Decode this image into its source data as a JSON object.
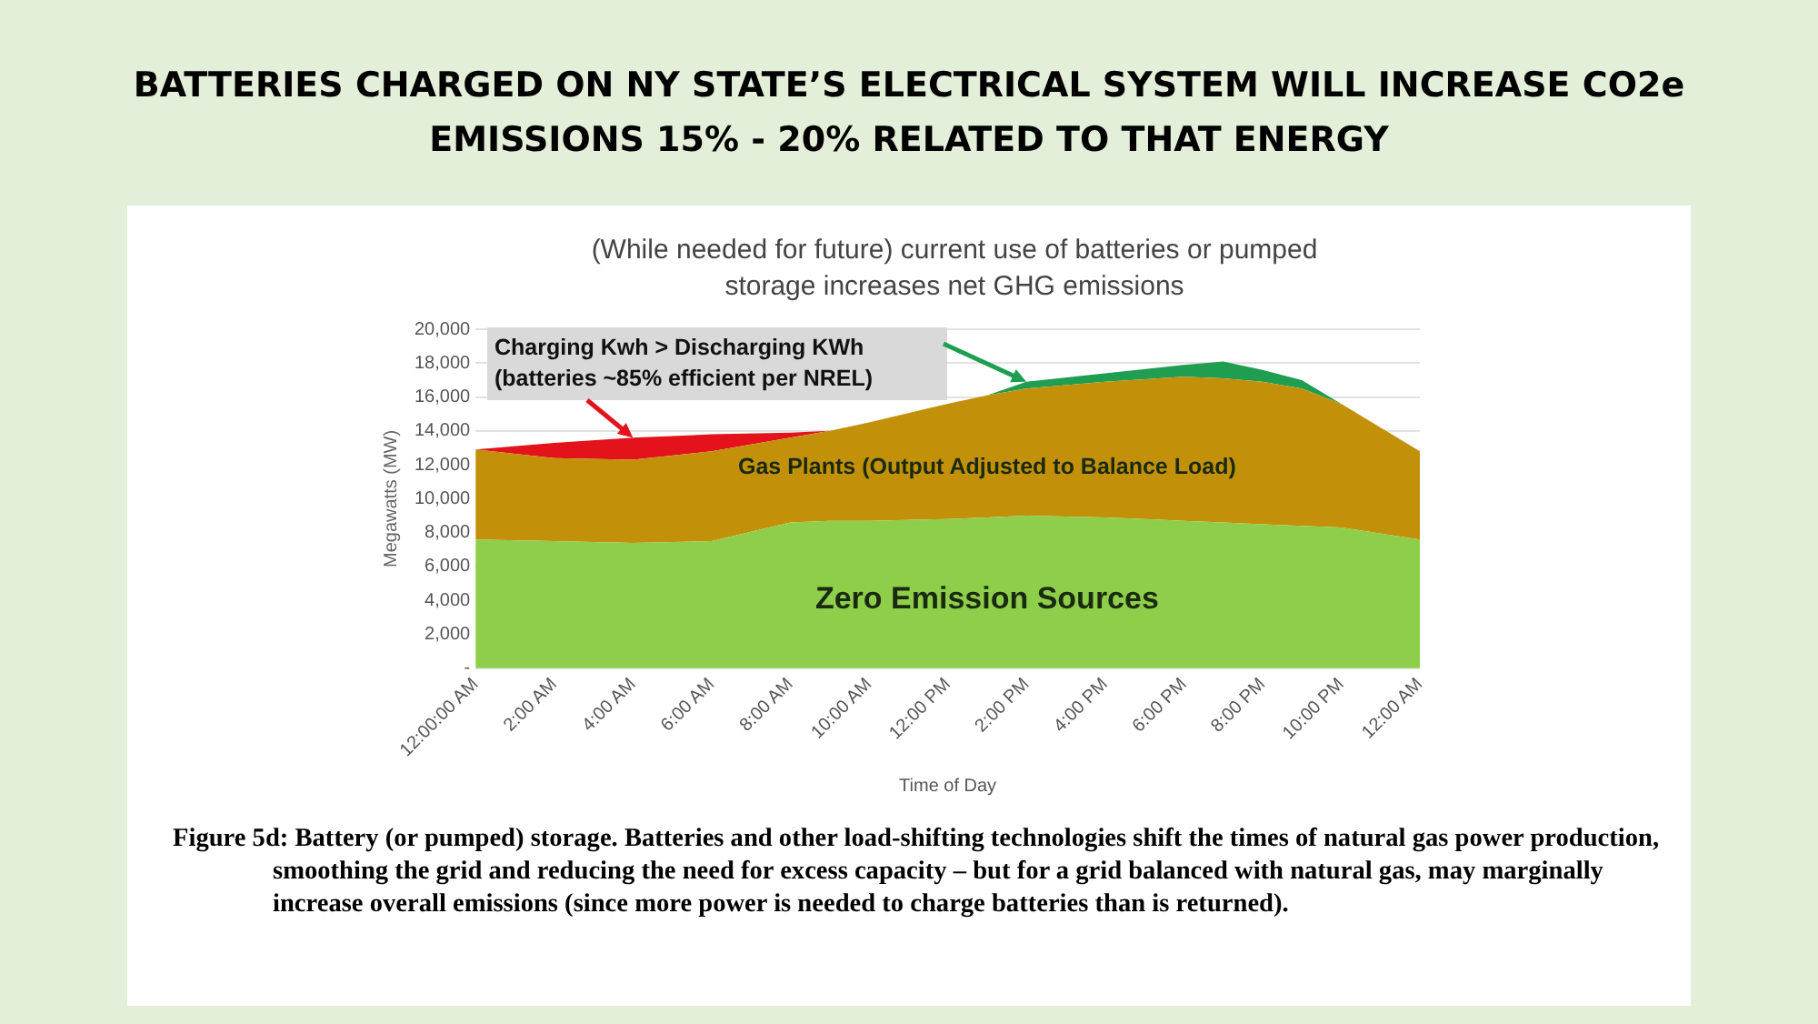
{
  "chart_data": {
    "type": "area",
    "stacked": true,
    "title": "BATTERIES CHARGED ON NY STATE’S ELECTRICAL SYSTEM WILL INCREASE CO2e EMISSIONS 15% - 20% RELATED TO THAT ENERGY",
    "subtitle": "(While needed for future) current use of batteries or pumped storage increases net GHG emissions",
    "xlabel": "Time of Day",
    "ylabel": "Megawatts (MW)",
    "x": [
      0,
      2,
      4,
      6,
      8,
      9,
      10,
      12,
      13,
      14,
      16,
      18,
      19,
      20,
      21,
      22,
      24
    ],
    "series": [
      {
        "name": "Zero Emission Sources",
        "color": "#8fce4a",
        "values": [
          7600,
          7500,
          7400,
          7500,
          8600,
          8700,
          8700,
          8800,
          8900,
          9000,
          8900,
          8700,
          8600,
          8500,
          8400,
          8300,
          7600
        ]
      },
      {
        "name": "Gas Plants (Output Adjusted to Balance Load)",
        "color": "#c39009",
        "values": [
          5300,
          4900,
          4900,
          5300,
          5000,
          5300,
          5800,
          6800,
          7200,
          7500,
          8000,
          8500,
          8500,
          8400,
          8100,
          7300,
          5200
        ]
      },
      {
        "color": "#e3121b",
        "values": [
          0,
          900,
          1300,
          1000,
          300,
          0,
          0,
          0,
          0,
          0,
          0,
          0,
          0,
          0,
          0,
          0,
          0
        ]
      },
      {
        "color": "#1f9e52",
        "values": [
          0,
          0,
          0,
          0,
          0,
          0,
          0,
          0,
          0,
          400,
          500,
          700,
          1000,
          700,
          500,
          0,
          0
        ]
      }
    ],
    "xlim": [
      0,
      24
    ],
    "xticks": [
      {
        "value": 0,
        "label": "12:00:00 AM"
      },
      {
        "value": 2,
        "label": "2:00 AM"
      },
      {
        "value": 4,
        "label": "4:00 AM"
      },
      {
        "value": 6,
        "label": "6:00 AM"
      },
      {
        "value": 8,
        "label": "8:00 AM"
      },
      {
        "value": 10,
        "label": "10:00 AM"
      },
      {
        "value": 12,
        "label": "12:00 PM"
      },
      {
        "value": 14,
        "label": "2:00 PM"
      },
      {
        "value": 16,
        "label": "4:00 PM"
      },
      {
        "value": 18,
        "label": "6:00 PM"
      },
      {
        "value": 20,
        "label": "8:00 PM"
      },
      {
        "value": 22,
        "label": "10:00 PM"
      },
      {
        "value": 24,
        "label": "12:00 AM"
      }
    ],
    "ylim": [
      0,
      20000
    ],
    "yticks": [
      {
        "value": 0,
        "label": "-"
      },
      {
        "value": 2000,
        "label": "2,000"
      },
      {
        "value": 4000,
        "label": "4,000"
      },
      {
        "value": 6000,
        "label": "6,000"
      },
      {
        "value": 8000,
        "label": "8,000"
      },
      {
        "value": 10000,
        "label": "10,000"
      },
      {
        "value": 12000,
        "label": "12,000"
      },
      {
        "value": 14000,
        "label": "14,000"
      },
      {
        "value": 16000,
        "label": "16,000"
      },
      {
        "value": 18000,
        "label": "18,000"
      },
      {
        "value": 20000,
        "label": "20,000"
      }
    ],
    "grid": "y",
    "legend": false,
    "annotations": [
      {
        "text": "Charging Kwh > Discharging KWh (batteries ~85% efficient per NREL)",
        "x": 4,
        "y": 13600
      },
      "Figure 5d:  Battery (or pumped) storage. Batteries and other load-shifting technologies shift the times of natural gas power production, smoothing the grid and reducing the need for excess capacity – but for a grid balanced with natural gas, may marginally increase overall emissions (since more power is needed to charge batteries than is returned)."
    ]
  }
}
